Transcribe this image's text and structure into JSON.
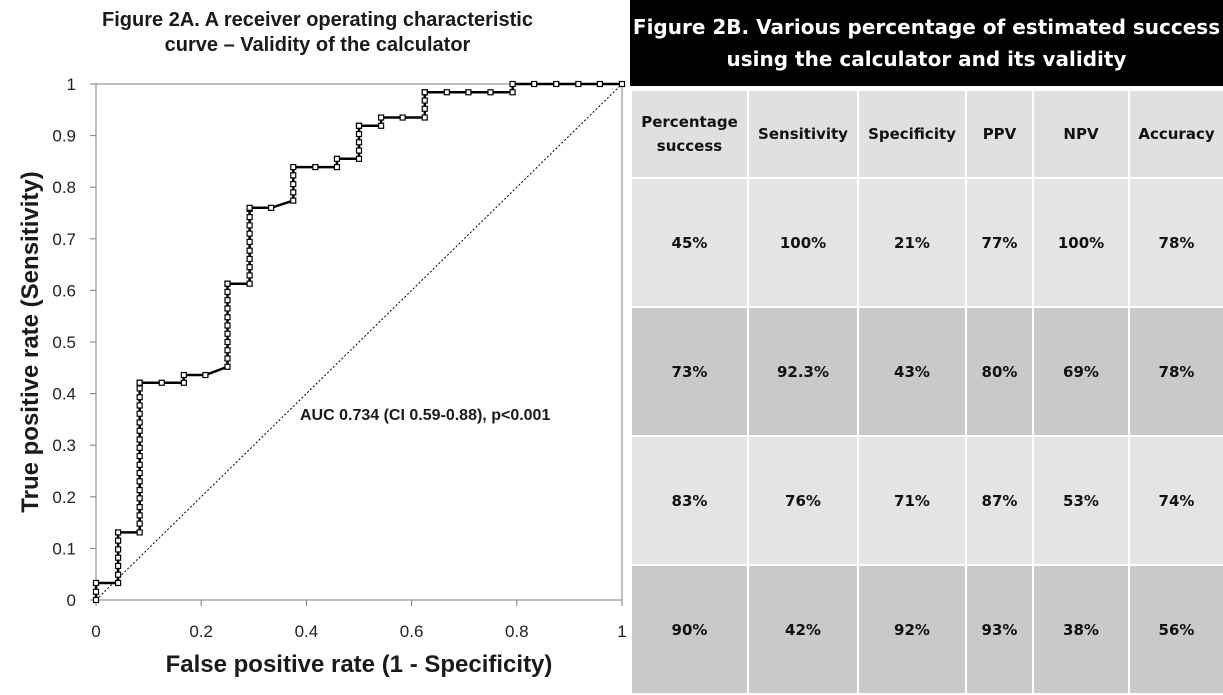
{
  "figure_a": {
    "title_line1": "Figure 2A. A receiver operating characteristic",
    "title_line2": "curve – Validity of the calculator",
    "annotation": "AUC 0.734 (CI 0.59-0.88), p<0.001"
  },
  "chart_data": {
    "type": "line",
    "title": "Figure 2A. A receiver operating characteristic curve – Validity of the calculator",
    "xlabel": "False positive rate (1 - Specificity)",
    "ylabel": "True positive rate (Sensitivity)",
    "xlim": [
      0,
      1
    ],
    "ylim": [
      0,
      1
    ],
    "x_ticks": [
      "0",
      "0.2",
      "0.4",
      "0.6",
      "0.8",
      "1"
    ],
    "y_ticks": [
      "0",
      "0.1",
      "0.2",
      "0.3",
      "0.4",
      "0.5",
      "0.6",
      "0.7",
      "0.8",
      "0.9",
      "1"
    ],
    "grid": false,
    "series": [
      {
        "markers": "square",
        "x": [
          0,
          0,
          0,
          0.042,
          0.042,
          0.042,
          0.042,
          0.042,
          0.042,
          0.042,
          0.083,
          0.083,
          0.083,
          0.083,
          0.083,
          0.083,
          0.083,
          0.083,
          0.083,
          0.083,
          0.083,
          0.083,
          0.083,
          0.083,
          0.083,
          0.083,
          0.083,
          0.083,
          0.083,
          0.083,
          0.125,
          0.167,
          0.167,
          0.208,
          0.25,
          0.25,
          0.25,
          0.25,
          0.25,
          0.25,
          0.25,
          0.25,
          0.25,
          0.25,
          0.25,
          0.25,
          0.292,
          0.292,
          0.292,
          0.292,
          0.292,
          0.292,
          0.292,
          0.292,
          0.292,
          0.292,
          0.292,
          0.333,
          0.375,
          0.375,
          0.375,
          0.375,
          0.375,
          0.417,
          0.458,
          0.458,
          0.5,
          0.5,
          0.5,
          0.5,
          0.5,
          0.5,
          0.542,
          0.542,
          0.583,
          0.625,
          0.625,
          0.625,
          0.625,
          0.625,
          0.667,
          0.708,
          0.75,
          0.792,
          0.792,
          0.833,
          0.875,
          0.917,
          0.958,
          1
        ],
        "y": [
          0,
          0.016,
          0.033,
          0.033,
          0.049,
          0.066,
          0.082,
          0.098,
          0.115,
          0.131,
          0.131,
          0.148,
          0.164,
          0.18,
          0.197,
          0.213,
          0.23,
          0.246,
          0.262,
          0.279,
          0.295,
          0.311,
          0.328,
          0.344,
          0.361,
          0.377,
          0.393,
          0.41,
          0.421,
          0.421,
          0.421,
          0.421,
          0.436,
          0.436,
          0.452,
          0.468,
          0.484,
          0.5,
          0.516,
          0.532,
          0.548,
          0.565,
          0.581,
          0.597,
          0.613,
          0.613,
          0.613,
          0.629,
          0.645,
          0.661,
          0.677,
          0.694,
          0.71,
          0.726,
          0.742,
          0.758,
          0.76,
          0.76,
          0.774,
          0.79,
          0.806,
          0.823,
          0.839,
          0.839,
          0.839,
          0.855,
          0.855,
          0.871,
          0.887,
          0.903,
          0.919,
          0.919,
          0.919,
          0.935,
          0.935,
          0.935,
          0.952,
          0.968,
          0.984,
          0.984,
          0.984,
          0.984,
          0.984,
          0.984,
          1,
          1,
          1,
          1,
          1,
          1
        ]
      },
      {
        "style": "dotted",
        "x": [
          0,
          1
        ],
        "y": [
          0,
          1
        ]
      }
    ]
  },
  "figure_b": {
    "title_line1": "Figure 2B. Various percentage of estimated success",
    "title_line2": "using the calculator and its validity",
    "columns": [
      "Percentage success",
      "Sensitivity",
      "Specificity",
      "PPV",
      "NPV",
      "Accuracy"
    ],
    "rows": [
      [
        "45%",
        "100%",
        "21%",
        "77%",
        "100%",
        "78%"
      ],
      [
        "73%",
        "92.3%",
        "43%",
        "80%",
        "69%",
        "78%"
      ],
      [
        "83%",
        "76%",
        "71%",
        "87%",
        "53%",
        "74%"
      ],
      [
        "90%",
        "42%",
        "92%",
        "93%",
        "38%",
        "56%"
      ]
    ]
  }
}
